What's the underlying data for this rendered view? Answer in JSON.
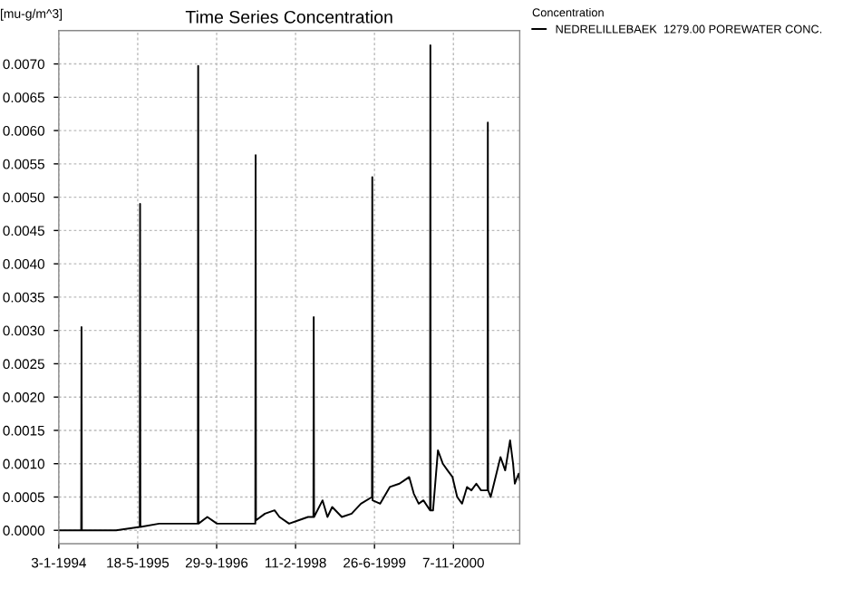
{
  "chart_data": {
    "type": "line",
    "title": "Time Series Concentration",
    "ylabel": "[mu-g/m^3]",
    "legend_title": "Concentration",
    "legend": "top right",
    "grid": true,
    "line_style": "solid",
    "xlim": [
      "1994-01-03",
      "2002-01-01"
    ],
    "ylim": [
      -0.0002,
      0.0075
    ],
    "xticks": [
      {
        "value": "1994-01-03",
        "label": "3-1-1994"
      },
      {
        "value": "1995-05-18",
        "label": "18-5-1995"
      },
      {
        "value": "1996-09-29",
        "label": "29-9-1996"
      },
      {
        "value": "1998-02-11",
        "label": "11-2-1998"
      },
      {
        "value": "1999-06-26",
        "label": "26-6-1999"
      },
      {
        "value": "2000-11-07",
        "label": "7-11-2000"
      }
    ],
    "yticks": [
      {
        "value": 0,
        "label": "0.0000"
      },
      {
        "value": 0.0005,
        "label": "0.0005"
      },
      {
        "value": 0.001,
        "label": "0.0010"
      },
      {
        "value": 0.0015,
        "label": "0.0015"
      },
      {
        "value": 0.002,
        "label": "0.0020"
      },
      {
        "value": 0.0025,
        "label": "0.0025"
      },
      {
        "value": 0.003,
        "label": "0.0030"
      },
      {
        "value": 0.0035,
        "label": "0.0035"
      },
      {
        "value": 0.004,
        "label": "0.0040"
      },
      {
        "value": 0.0045,
        "label": "0.0045"
      },
      {
        "value": 0.005,
        "label": "0.0050"
      },
      {
        "value": 0.0055,
        "label": "0.0055"
      },
      {
        "value": 0.006,
        "label": "0.0060"
      },
      {
        "value": 0.0065,
        "label": "0.0065"
      },
      {
        "value": 0.007,
        "label": "0.0070"
      }
    ],
    "x": [
      "1994-01-03",
      "1994-05-25",
      "1994-05-27",
      "1994-05-29",
      "1994-09-01",
      "1995-01-01",
      "1995-05-31",
      "1995-06-02",
      "1995-06-04",
      "1995-10-01",
      "1996-01-01",
      "1996-04-01",
      "1996-06-02",
      "1996-06-04",
      "1996-06-06",
      "1996-08-01",
      "1996-10-01",
      "1996-12-01",
      "1997-02-01",
      "1997-04-01",
      "1997-06-01",
      "1997-06-03",
      "1997-06-05",
      "1997-08-01",
      "1997-10-01",
      "1997-11-01",
      "1998-01-01",
      "1998-03-01",
      "1998-05-01",
      "1998-06-04",
      "1998-06-06",
      "1998-06-08",
      "1998-08-01",
      "1998-09-01",
      "1998-10-01",
      "1998-12-01",
      "1999-02-01",
      "1999-04-01",
      "1999-06-10",
      "1999-06-12",
      "1999-06-14",
      "1999-08-01",
      "1999-10-01",
      "1999-12-01",
      "2000-01-01",
      "2000-02-01",
      "2000-03-01",
      "2000-04-01",
      "2000-05-01",
      "2000-06-12",
      "2000-06-14",
      "2000-06-16",
      "2000-07-01",
      "2000-08-01",
      "2000-09-01",
      "2000-10-01",
      "2000-11-01",
      "2000-12-01",
      "2001-01-01",
      "2001-02-01",
      "2001-03-01",
      "2001-04-01",
      "2001-05-01",
      "2001-06-11",
      "2001-06-13",
      "2001-06-15",
      "2001-07-01",
      "2001-08-01",
      "2001-09-01",
      "2001-10-01",
      "2001-11-01",
      "2001-11-20",
      "2001-12-01",
      "2001-12-25",
      "2002-01-01"
    ],
    "series": [
      {
        "name": "NEDRELILLEBAEK  1279.00 POREWATER CONC.",
        "color": "#000000",
        "values": [
          0,
          0,
          0.00305,
          0,
          0,
          0,
          5e-05,
          0.0049,
          5e-05,
          0.0001,
          0.0001,
          0.0001,
          0.0001,
          0.00697,
          0.0001,
          0.0002,
          0.0001,
          0.0001,
          0.0001,
          0.0001,
          0.0001,
          0.00563,
          0.00015,
          0.00025,
          0.0003,
          0.0002,
          0.0001,
          0.00015,
          0.0002,
          0.0002,
          0.0032,
          0.0002,
          0.00045,
          0.0002,
          0.00035,
          0.0002,
          0.00025,
          0.0004,
          0.0005,
          0.0053,
          0.00045,
          0.0004,
          0.00065,
          0.0007,
          0.00075,
          0.0008,
          0.00055,
          0.0004,
          0.00045,
          0.0003,
          0.00728,
          0.0003,
          0.0003,
          0.0012,
          0.001,
          0.0009,
          0.0008,
          0.0005,
          0.0004,
          0.00065,
          0.0006,
          0.0007,
          0.0006,
          0.0006,
          0.00612,
          0.0006,
          0.0005,
          0.0008,
          0.0011,
          0.0009,
          0.00135,
          0.001,
          0.0007,
          0.00085,
          0.00075
        ]
      }
    ]
  }
}
